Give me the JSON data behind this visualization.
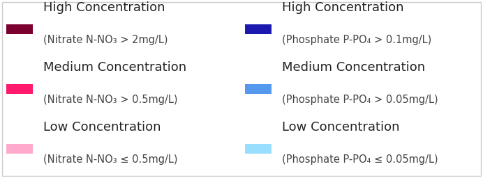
{
  "background_color": "#ffffff",
  "border_color": "#cccccc",
  "entries_left": [
    {
      "color": "#7b0030",
      "title": "High Concentration",
      "subtitle": "(Nitrate N-NO₃ > 2mg/L)"
    },
    {
      "color": "#ff1a6e",
      "title": "Medium Concentration",
      "subtitle": "(Nitrate N-NO₃ > 0.5mg/L)"
    },
    {
      "color": "#ffaacc",
      "title": "Low Concentration",
      "subtitle": "(Nitrate N-NO₃ ≤ 0.5mg/L)"
    }
  ],
  "entries_right": [
    {
      "color": "#1a1ab0",
      "title": "High Concentration",
      "subtitle": "(Phosphate P-PO₄ > 0.1mg/L)"
    },
    {
      "color": "#5599ee",
      "title": "Medium Concentration",
      "subtitle": "(Phosphate P-PO₄ > 0.05mg/L)"
    },
    {
      "color": "#99ddff",
      "title": "Low Concentration",
      "subtitle": "(Phosphate P-PO₄ ≤ 0.05mg/L)"
    }
  ],
  "title_fontsize": 13,
  "subtitle_fontsize": 10.5,
  "fig_width": 6.92,
  "fig_height": 2.56,
  "dpi": 100
}
